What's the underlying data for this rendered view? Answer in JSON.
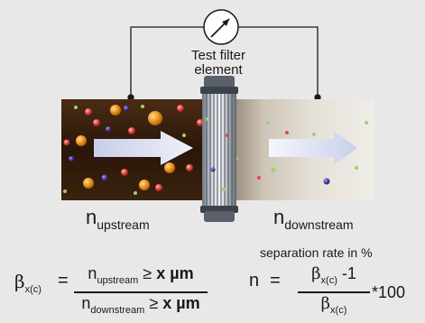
{
  "labels": {
    "filter_line1": "Test filter",
    "filter_line2": "element",
    "n_symbol": "n",
    "upstream_sub": "upstream",
    "downstream_sub": "downstream",
    "separation_rate": "separation rate in %"
  },
  "formula_beta": {
    "symbol": "β",
    "subscript": "x(c)",
    "equals": "=",
    "numerator_n": "n",
    "numerator_sub": "upstream",
    "numerator_cond": " ≥ ",
    "numerator_bold": "x µm",
    "denominator_n": "n",
    "denominator_sub": "downstream",
    "denominator_cond": " ≥ ",
    "denominator_bold": "x µm"
  },
  "formula_n": {
    "lhs": "n",
    "equals": "=",
    "num_symbol": "β",
    "num_sub": "x(c)",
    "num_suffix": " -1",
    "den_symbol": "β",
    "den_sub": "x(c)",
    "multiplier": "*100"
  },
  "colors": {
    "background": "#e8e8e8",
    "upstream_fluid_dark": "#2a1608",
    "downstream_fluid_light": "#e9e4dc",
    "arrow": "#dfe3f4",
    "particle_orange": "#f09a20",
    "particle_red": "#e34848",
    "particle_blue": "#5a3ea8",
    "particle_green": "#9bd36a",
    "filter_body": "#a0a8b2",
    "wire": "#1a1a1a"
  }
}
